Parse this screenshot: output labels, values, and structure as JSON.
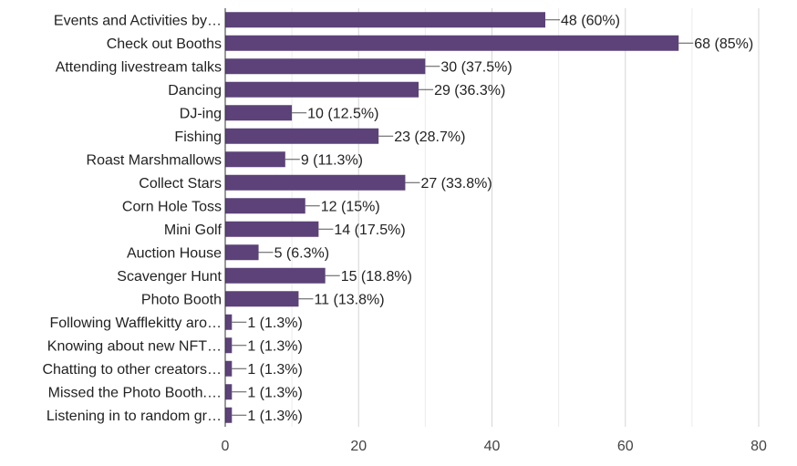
{
  "chart_data": {
    "type": "bar",
    "orientation": "horizontal",
    "categories": [
      "Events and Activities by…",
      "Check out Booths",
      "Attending livestream talks",
      "Dancing",
      "DJ-ing",
      "Fishing",
      "Roast Marshmallows",
      "Collect Stars",
      "Corn Hole Toss",
      "Mini Golf",
      "Auction House",
      "Scavenger Hunt",
      "Photo Booth",
      "Following Wafflekitty aro…",
      "Knowing about new NFT…",
      "Chatting to other creators…",
      "Missed the Photo Booth.…",
      "Listening in to random gr…"
    ],
    "values": [
      48,
      68,
      30,
      29,
      10,
      23,
      9,
      27,
      12,
      14,
      5,
      15,
      11,
      1,
      1,
      1,
      1,
      1
    ],
    "value_labels": [
      "48 (60%)",
      "68 (85%)",
      "30 (37.5%)",
      "29 (36.3%)",
      "10 (12.5%)",
      "23 (28.7%)",
      "9 (11.3%)",
      "27 (33.8%)",
      "12 (15%)",
      "14 (17.5%)",
      "5 (6.3%)",
      "15 (18.8%)",
      "11 (13.8%)",
      "1 (1.3%)",
      "1 (1.3%)",
      "1 (1.3%)",
      "1 (1.3%)",
      "1 (1.3%)"
    ],
    "x_ticks": [
      "0",
      "20",
      "40",
      "60",
      "80"
    ],
    "xlim": [
      0,
      80
    ],
    "grid": true,
    "bar_color": "#5c4279",
    "title": "",
    "xlabel": "",
    "ylabel": ""
  }
}
